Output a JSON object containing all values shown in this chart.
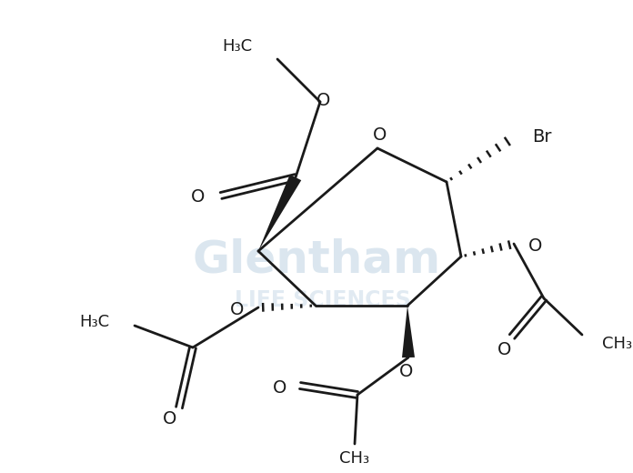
{
  "bg_color": "#ffffff",
  "line_color": "#1a1a1a",
  "wm_color1": "#b8cfe0",
  "wm_color2": "#b8cfe0",
  "fig_width": 6.96,
  "fig_height": 5.2,
  "dpi": 100,
  "xlim": [
    0,
    6.96
  ],
  "ylim": [
    0,
    5.2
  ]
}
